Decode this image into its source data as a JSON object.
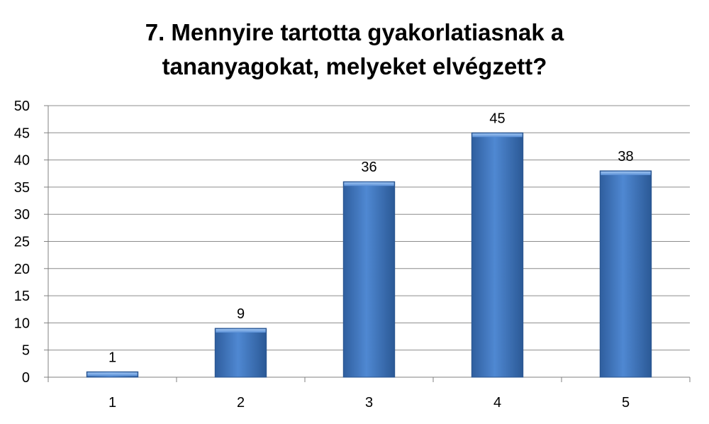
{
  "chart_data": {
    "type": "bar",
    "title_lines": [
      "7. Mennyire tartotta gyakorlatiasnak a",
      "tananyagokat, melyeket elvégzett?"
    ],
    "categories": [
      "1",
      "2",
      "3",
      "4",
      "5"
    ],
    "values": [
      1,
      9,
      36,
      45,
      38
    ],
    "ylim": [
      0,
      50
    ],
    "yticks": [
      0,
      5,
      10,
      15,
      20,
      25,
      30,
      35,
      40,
      45,
      50
    ],
    "grid": true,
    "legend": "none",
    "colors": {
      "bar": "#4a7fc8",
      "bar_dark": "#2f5e9e",
      "bar_light": "#7eaae6",
      "grid": "#8c8c8c"
    }
  }
}
